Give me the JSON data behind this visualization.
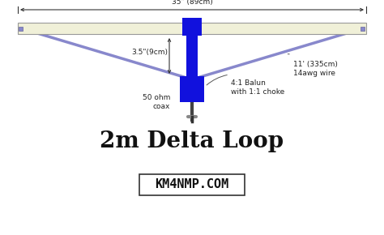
{
  "bg_color": "#ffffff",
  "title": "2m Delta Loop",
  "title_fontsize": 20,
  "watermark": "KM4NMP.COM",
  "watermark_fontsize": 11,
  "boom_color": "#f0f0d8",
  "boom_stroke": "#999999",
  "boom_lw": 0.8,
  "center_box_color": "#1111dd",
  "wire_color": "#8888cc",
  "wire_lw": 2.5,
  "dim_line_color": "#333333",
  "annotation_fontsize": 6.5,
  "label_35": "35\" (89cm)",
  "label_3p5": "3.5\"(9cm)",
  "label_wire_line1": "11' (335cm)",
  "label_wire_line2": "14awg wire",
  "label_balun_line1": "4:1 Balun",
  "label_balun_line2": "with 1:1 choke",
  "label_coax_line1": "50 ohm",
  "label_coax_line2": "coax",
  "coax_color": "#444444",
  "connector_color": "#666666"
}
